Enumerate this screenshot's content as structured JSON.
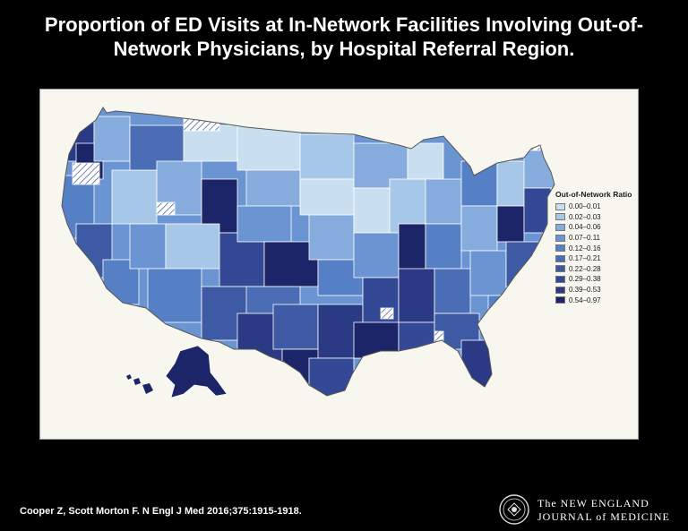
{
  "title": "Proportion of ED Visits at In-Network Facilities Involving Out-of-Network Physicians, by Hospital Referral Region.",
  "legend": {
    "title": "Out-of-Network Ratio",
    "items": [
      {
        "label": "0.00–0.01",
        "color": "#c9dff0"
      },
      {
        "label": "0.02–0.03",
        "color": "#a6c7e8"
      },
      {
        "label": "0.04–0.06",
        "color": "#86acdd"
      },
      {
        "label": "0.07–0.11",
        "color": "#6b95d2"
      },
      {
        "label": "0.12–0.16",
        "color": "#5680c6"
      },
      {
        "label": "0.17–0.21",
        "color": "#4a6db6"
      },
      {
        "label": "0.22–0.28",
        "color": "#3f5aa5"
      },
      {
        "label": "0.29–0.38",
        "color": "#344995"
      },
      {
        "label": "0.39–0.53",
        "color": "#2a3a84"
      },
      {
        "label": "0.54–0.97",
        "color": "#1c2567"
      }
    ]
  },
  "citation": "Cooper Z, Scott Morton F. N Engl J Med 2016;375:1915-1918.",
  "journal": {
    "line1": "The NEW ENGLAND",
    "line2": "JOURNAL of MEDICINE"
  }
}
